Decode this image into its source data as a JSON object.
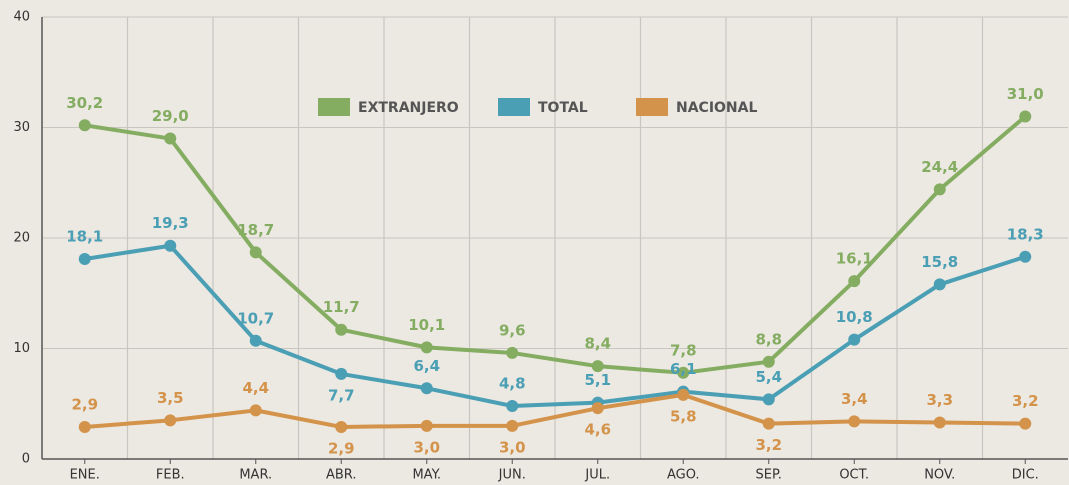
{
  "chart_data": {
    "type": "line",
    "categories": [
      "ENE.",
      "FEB.",
      "MAR.",
      "ABR.",
      "MAY.",
      "JUN.",
      "JUL.",
      "AGO.",
      "SEP.",
      "OCT.",
      "NOV.",
      "DIC."
    ],
    "series": [
      {
        "name": "EXTRANJERO",
        "color": "#84ad62",
        "values": [
          30.2,
          29.0,
          18.7,
          11.7,
          10.1,
          9.6,
          8.4,
          7.8,
          8.8,
          16.1,
          24.4,
          31.0
        ],
        "value_labels": [
          "30,2",
          "29,0",
          "18,7",
          "11,7",
          "10,1",
          "9,6",
          "8,4",
          "7,8",
          "8,8",
          "16,1",
          "24,4",
          "31,0"
        ]
      },
      {
        "name": "TOTAL",
        "color": "#4a9fb5",
        "values": [
          18.1,
          19.3,
          10.7,
          7.7,
          6.4,
          4.8,
          5.1,
          6.1,
          5.4,
          10.8,
          15.8,
          18.3
        ],
        "value_labels": [
          "18,1",
          "19,3",
          "10,7",
          "7,7",
          "6,4",
          "4,8",
          "5,1",
          "6,1",
          "5,4",
          "10,8",
          "15,8",
          "18,3"
        ]
      },
      {
        "name": "NACIONAL",
        "color": "#d4934a",
        "values": [
          2.9,
          3.5,
          4.4,
          2.9,
          3.0,
          3.0,
          4.6,
          5.8,
          3.2,
          3.4,
          3.3,
          3.2
        ],
        "value_labels": [
          "2,9",
          "3,5",
          "4,4",
          "2,9",
          "3,0",
          "3,0",
          "4,6",
          "5,8",
          "3,2",
          "3,4",
          "3,3",
          "3,2"
        ]
      }
    ],
    "ylim": [
      0,
      40
    ],
    "yticks": [
      0,
      10,
      20,
      30,
      40
    ],
    "grid": true,
    "legend": "top"
  }
}
